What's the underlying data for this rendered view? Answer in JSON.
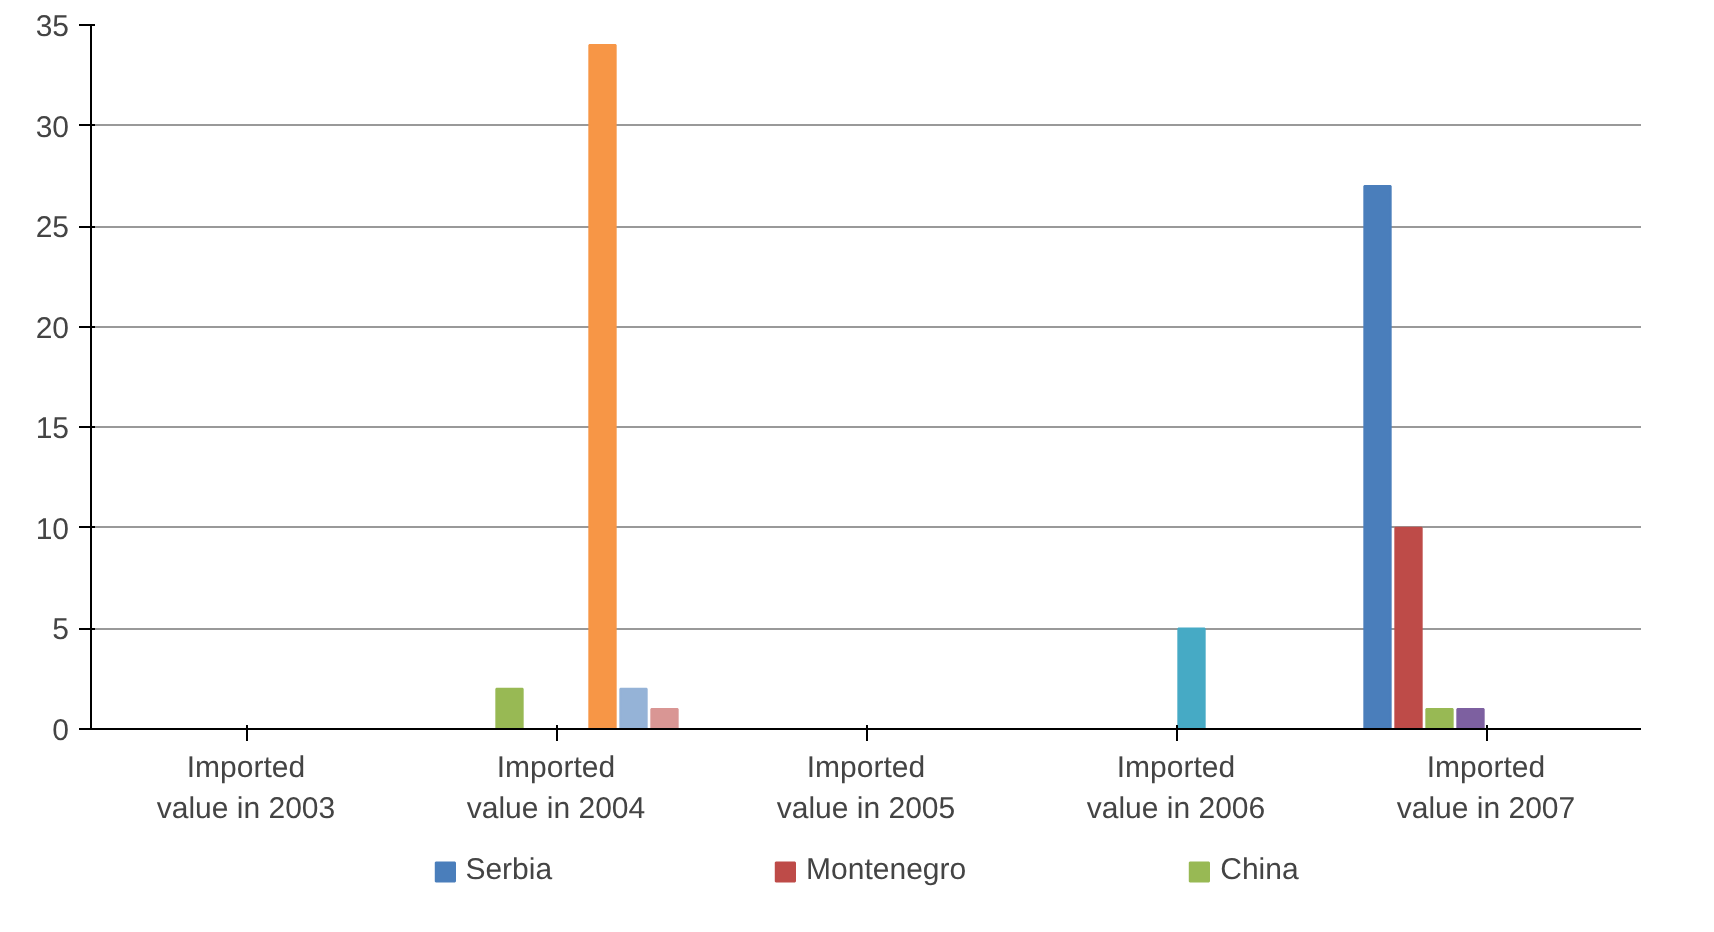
{
  "chart_data": {
    "type": "bar",
    "categories": [
      "Imported\nvalue in 2003",
      "Imported\nvalue in 2004",
      "Imported\nvalue in 2005",
      "Imported\nvalue in 2006",
      "Imported\nvalue in 2007"
    ],
    "series": [
      {
        "name": "Serbia",
        "color": "#4a7ebb",
        "values": [
          0,
          0,
          0,
          0,
          27
        ]
      },
      {
        "name": "Montenegro",
        "color": "#be4b48",
        "values": [
          0,
          0,
          0,
          0,
          10
        ]
      },
      {
        "name": "China",
        "color": "#98b954",
        "values": [
          0,
          2,
          0,
          0,
          1
        ]
      },
      {
        "color": "#7d60a0",
        "values": [
          0,
          0,
          0,
          0,
          1
        ]
      },
      {
        "color": "#46aac5",
        "values": [
          0,
          0,
          0,
          5,
          0
        ]
      },
      {
        "color": "#f79646",
        "values": [
          0,
          34,
          0,
          0,
          0
        ]
      },
      {
        "color": "#95b3d7",
        "values": [
          0,
          2,
          0,
          0,
          0
        ]
      },
      {
        "color": "#d99694",
        "values": [
          0,
          1,
          0,
          0,
          0
        ]
      }
    ],
    "ylim": [
      0,
      35
    ],
    "yticks": [
      0,
      5,
      10,
      15,
      20,
      25,
      30,
      35
    ],
    "grid": "y",
    "legend": "bottom"
  }
}
